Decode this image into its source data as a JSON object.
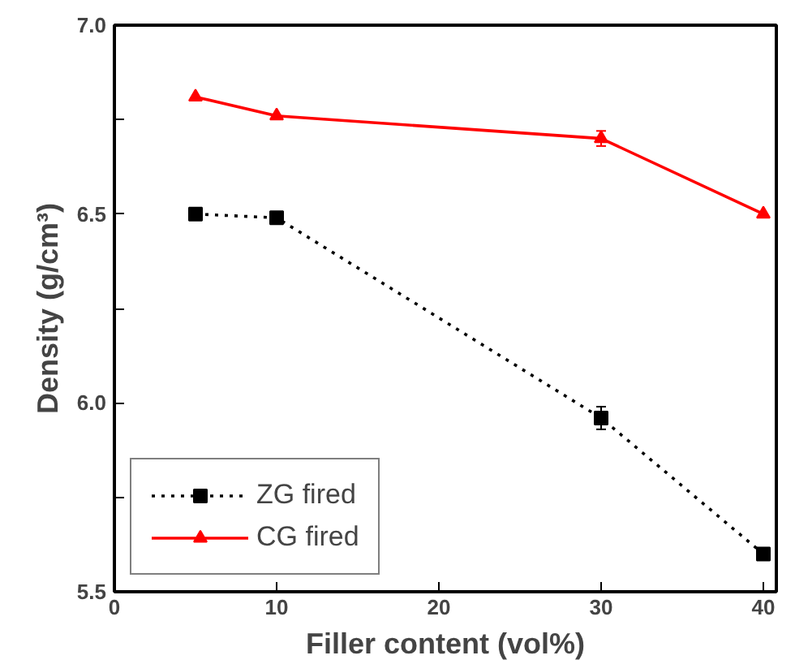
{
  "chart_data": {
    "type": "line",
    "xlabel": "Filler content (vol%)",
    "ylabel": "Density (g/cm³)",
    "x": [
      5,
      10,
      30,
      40
    ],
    "series": [
      {
        "name": "ZG fired",
        "color": "#000000",
        "values": [
          6.5,
          6.49,
          5.96,
          5.6
        ],
        "errors": [
          null,
          null,
          0.03,
          null
        ],
        "marker": "square",
        "line_style": "dotted"
      },
      {
        "name": "CG fired",
        "color": "#ff0000",
        "values": [
          6.81,
          6.76,
          6.7,
          6.5
        ],
        "errors": [
          null,
          null,
          0.02,
          null
        ],
        "marker": "triangle",
        "line_style": "solid"
      }
    ],
    "xlim": [
      0,
      40.8
    ],
    "ylim": [
      5.5,
      7.0
    ],
    "xticks": [
      0,
      10,
      20,
      30,
      40
    ],
    "yticks": [
      5.5,
      {
        "value": 5.75,
        "label": null
      },
      {
        "value": 6.0,
        "label": "6.0"
      },
      {
        "value": 6.25,
        "label": null
      },
      6.5,
      {
        "value": 6.75,
        "label": null
      },
      {
        "value": 7.0,
        "label": "7.0"
      }
    ],
    "grid": false,
    "legend": "bottom left"
  }
}
